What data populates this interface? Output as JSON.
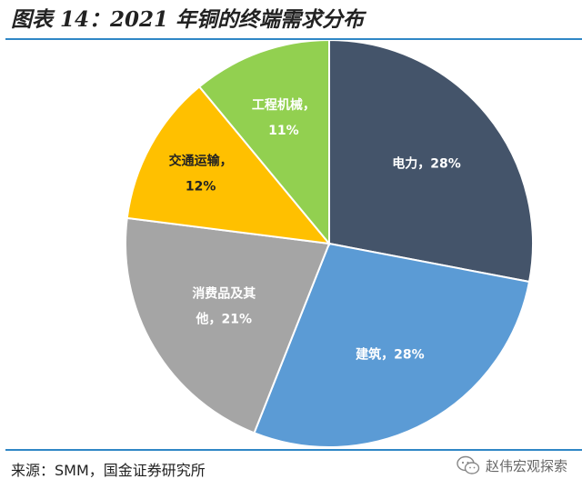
{
  "header": {
    "title": "图表 14：2021 年铜的终端需求分布"
  },
  "footer": {
    "source": "来源：SMM，国金证券研究所",
    "watermark": "赵伟宏观探索"
  },
  "chart_data": {
    "type": "pie",
    "title": "",
    "start_angle_deg": 0,
    "direction": "clockwise",
    "slices": [
      {
        "name": "电力",
        "value": 28,
        "label_line1": "电力，28%",
        "label_line2": "",
        "color": "#44546a",
        "label_color": "#ffffff"
      },
      {
        "name": "建筑",
        "value": 28,
        "label_line1": "建筑，28%",
        "label_line2": "",
        "color": "#5b9bd5",
        "label_color": "#ffffff"
      },
      {
        "name": "消费品及其他",
        "value": 21,
        "label_line1": "消费品及其",
        "label_line2": "他，21%",
        "color": "#a5a5a5",
        "label_color": "#ffffff"
      },
      {
        "name": "交通运输",
        "value": 12,
        "label_line1": "交通运输，",
        "label_line2": "12%",
        "color": "#ffc000",
        "label_color": "#222222"
      },
      {
        "name": "工程机械",
        "value": 11,
        "label_line1": "工程机械，",
        "label_line2": "11%",
        "color": "#92d050",
        "label_color": "#ffffff"
      }
    ]
  }
}
